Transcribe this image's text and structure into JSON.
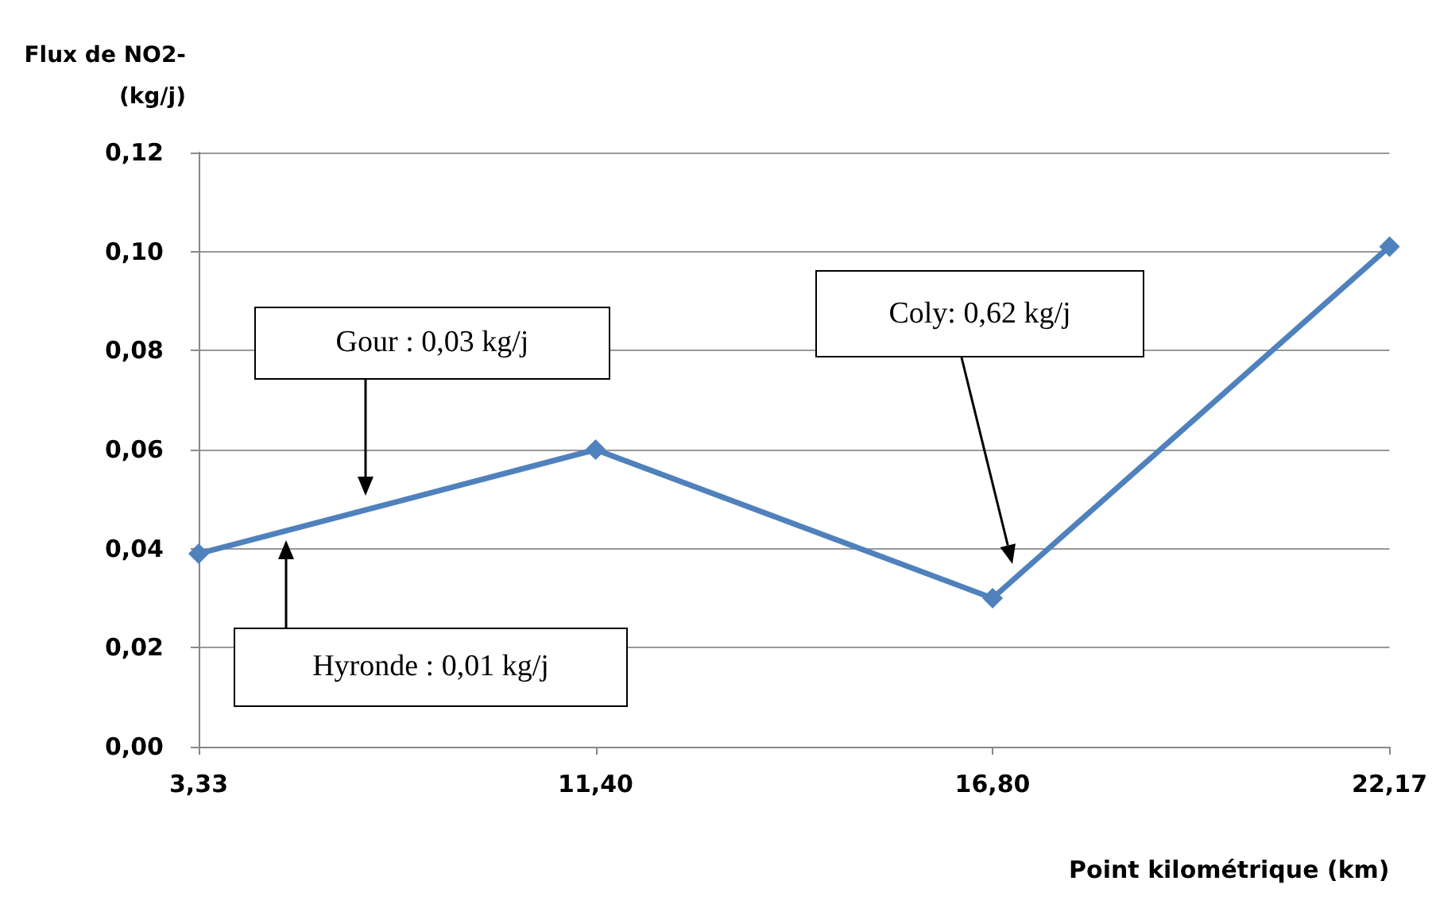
{
  "chart_data": {
    "type": "line",
    "ylabel": "Flux de NO2- (kg/j)",
    "xlabel": "Point kilométrique (km)",
    "categories": [
      "3,33",
      "11,40",
      "16,80",
      "22,17"
    ],
    "series": [
      {
        "color": "#4f81bd",
        "values": [
          0.039,
          0.06,
          0.03,
          0.101
        ]
      }
    ],
    "ylim": [
      0,
      0.12
    ],
    "yticks": [
      {
        "value": 0,
        "label": "0,00"
      },
      {
        "value": 0.02,
        "label": "0,02"
      },
      {
        "value": 0.04,
        "label": "0,04"
      },
      {
        "value": 0.06,
        "label": "0,06"
      },
      {
        "value": 0.08,
        "label": "0,08"
      },
      {
        "value": 0.1,
        "label": "0,10"
      },
      {
        "value": 0.12,
        "label": "0,12"
      }
    ],
    "grid": "y",
    "marker": "diamond",
    "line_style": "solid",
    "annotations": [
      "Gour : 0,03 kg/j",
      "Hyronde : 0,01 kg/j",
      "Coly: 0,62 kg/j"
    ]
  }
}
